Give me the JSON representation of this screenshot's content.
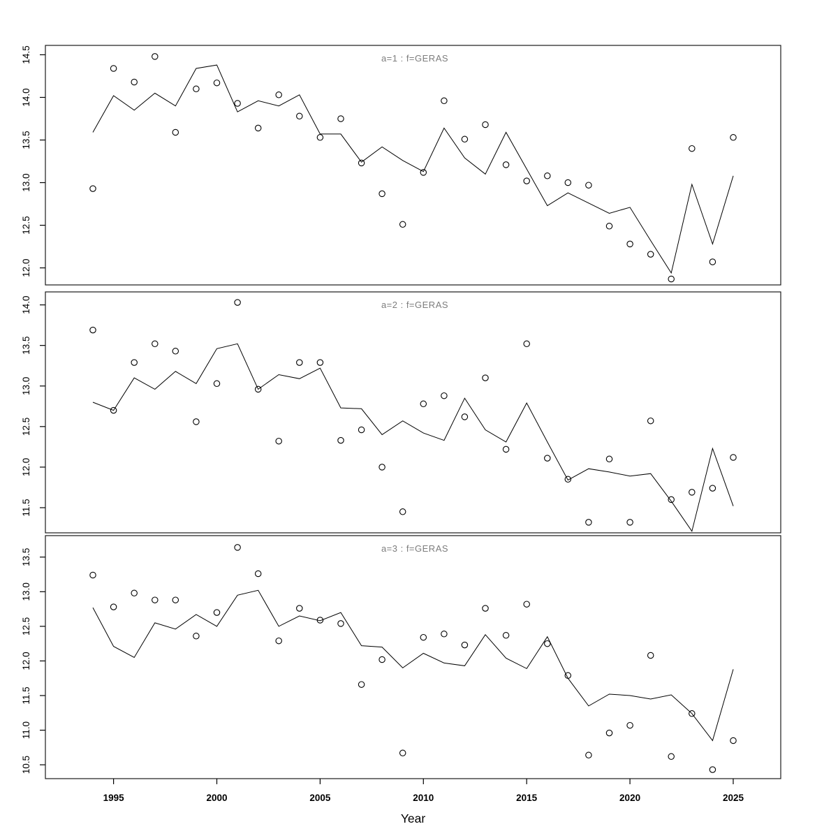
{
  "figure": {
    "xlabel": "Year",
    "background_color": "#ffffff",
    "line_color": "#000000",
    "point_color": "#000000",
    "strip_title_color": "#7d7d7d",
    "axis_color": "#000000",
    "tick_label_color": "#000000"
  },
  "x_axis": {
    "ticks": [
      1995,
      2000,
      2005,
      2010,
      2015,
      2020,
      2025
    ],
    "xlim": [
      1991.7,
      2027.3
    ]
  },
  "chart_data": [
    {
      "type": "scatter",
      "panel_index": 1,
      "title": "a=1 : f=GERAS",
      "xlabel": "Year",
      "ylim": [
        11.8,
        14.61
      ],
      "yticks": [
        12.0,
        12.5,
        13.0,
        13.5,
        14.0,
        14.5
      ],
      "grid": false,
      "x": [
        1994,
        1995,
        1996,
        1997,
        1998,
        1999,
        2000,
        2001,
        2002,
        2003,
        2004,
        2005,
        2006,
        2007,
        2008,
        2009,
        2010,
        2011,
        2012,
        2013,
        2014,
        2015,
        2016,
        2017,
        2018,
        2019,
        2020,
        2021,
        2022,
        2023,
        2024,
        2025
      ],
      "series": [
        {
          "name": "observed",
          "style": "open-circle",
          "values": [
            12.93,
            14.34,
            14.18,
            14.48,
            13.59,
            14.1,
            14.17,
            13.93,
            13.64,
            14.03,
            13.78,
            13.53,
            13.75,
            13.23,
            12.87,
            12.51,
            13.12,
            13.96,
            13.51,
            13.68,
            13.21,
            13.02,
            13.08,
            13.0,
            12.97,
            12.49,
            12.28,
            12.16,
            11.87,
            13.4,
            12.07,
            13.53
          ]
        },
        {
          "name": "fitted-line",
          "style": "line",
          "values": [
            13.59,
            14.02,
            13.85,
            14.05,
            13.9,
            14.34,
            14.38,
            13.83,
            13.96,
            13.9,
            14.03,
            13.57,
            13.57,
            13.24,
            13.42,
            13.26,
            13.13,
            13.64,
            13.29,
            13.1,
            13.59,
            13.16,
            12.73,
            12.88,
            12.76,
            12.64,
            12.71,
            12.32,
            11.94,
            12.98,
            12.28,
            13.08
          ]
        }
      ]
    },
    {
      "type": "scatter",
      "panel_index": 2,
      "title": "a=2 : f=GERAS",
      "xlabel": "Year",
      "ylim": [
        11.19,
        14.16
      ],
      "yticks": [
        11.5,
        12.0,
        12.5,
        13.0,
        13.5,
        14.0
      ],
      "grid": false,
      "x": [
        1994,
        1995,
        1996,
        1997,
        1998,
        1999,
        2000,
        2001,
        2002,
        2003,
        2004,
        2005,
        2006,
        2007,
        2008,
        2009,
        2010,
        2011,
        2012,
        2013,
        2014,
        2015,
        2016,
        2017,
        2018,
        2019,
        2020,
        2021,
        2022,
        2023,
        2024,
        2025
      ],
      "series": [
        {
          "name": "observed",
          "style": "open-circle",
          "values": [
            13.69,
            12.7,
            13.29,
            13.52,
            13.43,
            12.56,
            13.03,
            14.03,
            12.96,
            12.32,
            13.29,
            13.29,
            12.33,
            12.46,
            12.0,
            11.45,
            12.78,
            12.88,
            12.62,
            13.1,
            12.22,
            13.52,
            12.11,
            11.85,
            11.32,
            12.1,
            11.32,
            12.57,
            11.6,
            11.69,
            11.74,
            12.12
          ]
        },
        {
          "name": "fitted-line",
          "style": "line",
          "values": [
            12.8,
            12.7,
            13.1,
            12.96,
            13.18,
            13.03,
            13.46,
            13.52,
            12.96,
            13.14,
            13.09,
            13.22,
            12.73,
            12.72,
            12.4,
            12.57,
            12.42,
            12.33,
            12.85,
            12.46,
            12.31,
            12.79,
            12.31,
            11.84,
            11.98,
            11.94,
            11.89,
            11.92,
            11.58,
            11.21,
            12.23,
            11.52
          ]
        }
      ]
    },
    {
      "type": "scatter",
      "panel_index": 3,
      "title": "a=3 : f=GERAS",
      "xlabel": "Year",
      "ylim": [
        10.3,
        13.81
      ],
      "yticks": [
        10.5,
        11.0,
        11.5,
        12.0,
        12.5,
        13.0,
        13.5
      ],
      "grid": false,
      "x": [
        1994,
        1995,
        1996,
        1997,
        1998,
        1999,
        2000,
        2001,
        2002,
        2003,
        2004,
        2005,
        2006,
        2007,
        2008,
        2009,
        2010,
        2011,
        2012,
        2013,
        2014,
        2015,
        2016,
        2017,
        2018,
        2019,
        2020,
        2021,
        2022,
        2023,
        2024,
        2025
      ],
      "series": [
        {
          "name": "observed",
          "style": "open-circle",
          "values": [
            13.24,
            12.78,
            12.98,
            12.88,
            12.88,
            12.36,
            12.7,
            13.64,
            13.26,
            12.29,
            12.76,
            12.59,
            12.54,
            11.66,
            12.02,
            10.67,
            12.34,
            12.39,
            12.23,
            12.76,
            12.37,
            12.82,
            12.25,
            11.79,
            10.64,
            10.96,
            11.07,
            12.08,
            10.62,
            11.24,
            10.43,
            10.85
          ]
        },
        {
          "name": "fitted-line",
          "style": "line",
          "values": [
            12.77,
            12.21,
            12.05,
            12.55,
            12.46,
            12.67,
            12.5,
            12.95,
            13.02,
            12.5,
            12.65,
            12.58,
            12.7,
            12.22,
            12.2,
            11.9,
            12.11,
            11.97,
            11.93,
            12.38,
            12.04,
            11.89,
            12.35,
            11.75,
            11.35,
            11.52,
            11.5,
            11.45,
            11.51,
            11.24,
            10.85,
            11.88
          ]
        }
      ]
    }
  ]
}
